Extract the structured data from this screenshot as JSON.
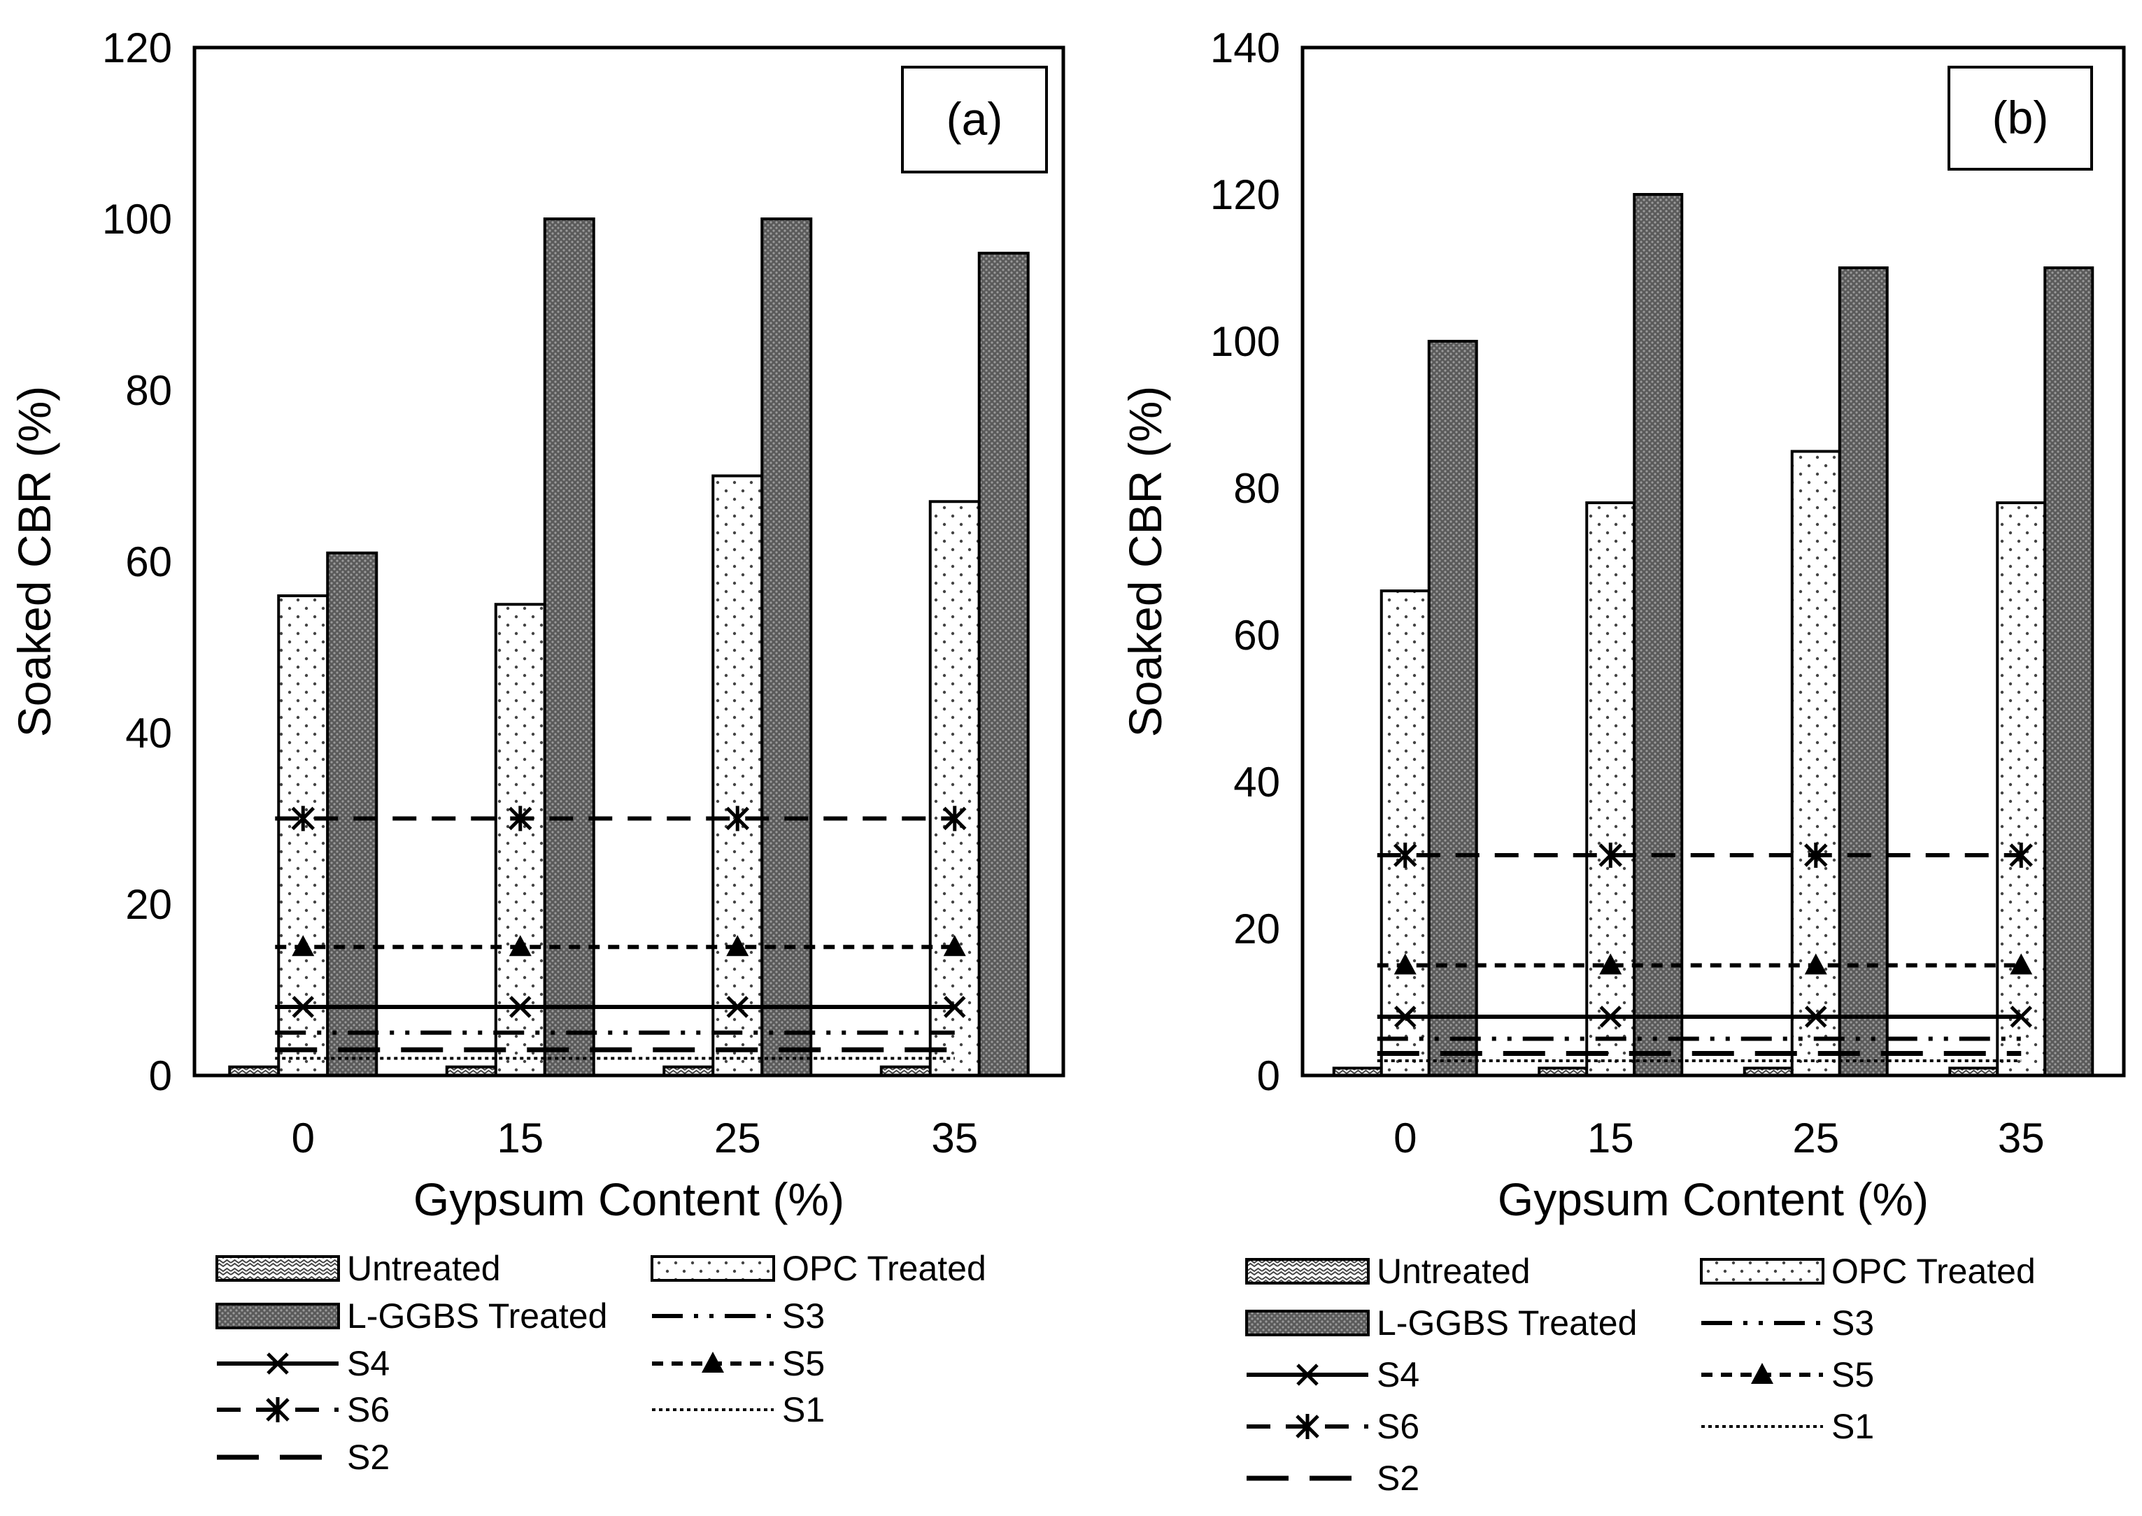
{
  "colors": {
    "axis": "#000000",
    "opc_fill": "#ffffff",
    "lggbs_fill": "#6e6e6e",
    "untreated_fill": "#ffffff"
  },
  "legend": {
    "untreated": "Untreated",
    "opc": "OPC Treated",
    "lggbs": "L-GGBS Treated",
    "s1": "S1",
    "s2": "S2",
    "s3": "S3",
    "s4": "S4",
    "s5": "S5",
    "s6": "S6"
  },
  "chart_data": [
    {
      "type": "bar",
      "panel_label": "(a)",
      "xlabel": "Gypsum Content (%)",
      "ylabel": "Soaked CBR (%)",
      "ylim": [
        0,
        120
      ],
      "yticks": [
        0,
        20,
        40,
        60,
        80,
        100,
        120
      ],
      "categories": [
        "0",
        "15",
        "25",
        "35"
      ],
      "series": [
        {
          "name": "Untreated",
          "values": [
            1,
            1,
            1,
            1
          ]
        },
        {
          "name": "OPC Treated",
          "values": [
            56,
            55,
            70,
            67
          ]
        },
        {
          "name": "L-GGBS Treated",
          "values": [
            61,
            100,
            100,
            96
          ]
        }
      ],
      "reference_lines": [
        {
          "name": "S1",
          "value": 2
        },
        {
          "name": "S2",
          "value": 3
        },
        {
          "name": "S3",
          "value": 5
        },
        {
          "name": "S4",
          "value": 8
        },
        {
          "name": "S5",
          "value": 15
        },
        {
          "name": "S6",
          "value": 30
        }
      ]
    },
    {
      "type": "bar",
      "panel_label": "(b)",
      "xlabel": "Gypsum Content (%)",
      "ylabel": "Soaked CBR (%)",
      "ylim": [
        0,
        140
      ],
      "yticks": [
        0,
        20,
        40,
        60,
        80,
        100,
        120,
        140
      ],
      "categories": [
        "0",
        "15",
        "25",
        "35"
      ],
      "series": [
        {
          "name": "Untreated",
          "values": [
            1,
            1,
            1,
            1
          ]
        },
        {
          "name": "OPC Treated",
          "values": [
            66,
            78,
            85,
            78
          ]
        },
        {
          "name": "L-GGBS Treated",
          "values": [
            100,
            120,
            110,
            110
          ]
        }
      ],
      "reference_lines": [
        {
          "name": "S1",
          "value": 2
        },
        {
          "name": "S2",
          "value": 3
        },
        {
          "name": "S3",
          "value": 5
        },
        {
          "name": "S4",
          "value": 8
        },
        {
          "name": "S5",
          "value": 15
        },
        {
          "name": "S6",
          "value": 30
        }
      ]
    }
  ]
}
